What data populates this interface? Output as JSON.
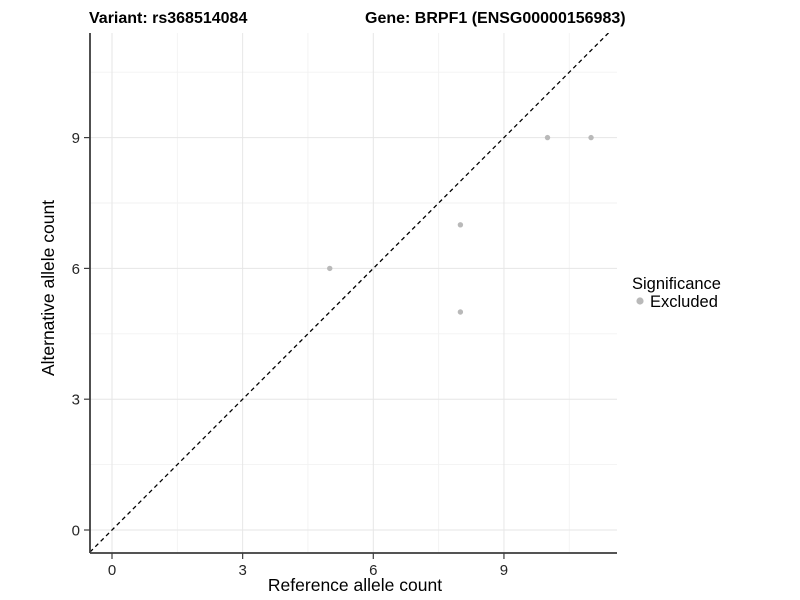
{
  "chart_data": {
    "type": "scatter",
    "title_left": "Variant: rs368514084",
    "title_right": "Gene: BRPF1 (ENSG00000156983)",
    "xlabel": "Reference allele count",
    "ylabel": "Alternative allele count",
    "xticks": [
      0,
      3,
      6,
      9
    ],
    "yticks": [
      0,
      3,
      6,
      9
    ],
    "xlim": [
      -0.55,
      11.6
    ],
    "ylim": [
      -0.55,
      11.4
    ],
    "minor_step": 1.5,
    "grid": "major+minor, light grey on white",
    "identity_line": {
      "type": "y=x",
      "style": "dashed",
      "color": "#000000"
    },
    "legend_position": "right",
    "legend_title": "Significance",
    "series": [
      {
        "name": "Excluded",
        "color": "#b9b9b9",
        "marker": "circle",
        "points": [
          [
            5,
            6
          ],
          [
            8,
            5
          ],
          [
            8,
            7
          ],
          [
            10,
            9
          ],
          [
            11,
            9
          ]
        ]
      }
    ]
  }
}
